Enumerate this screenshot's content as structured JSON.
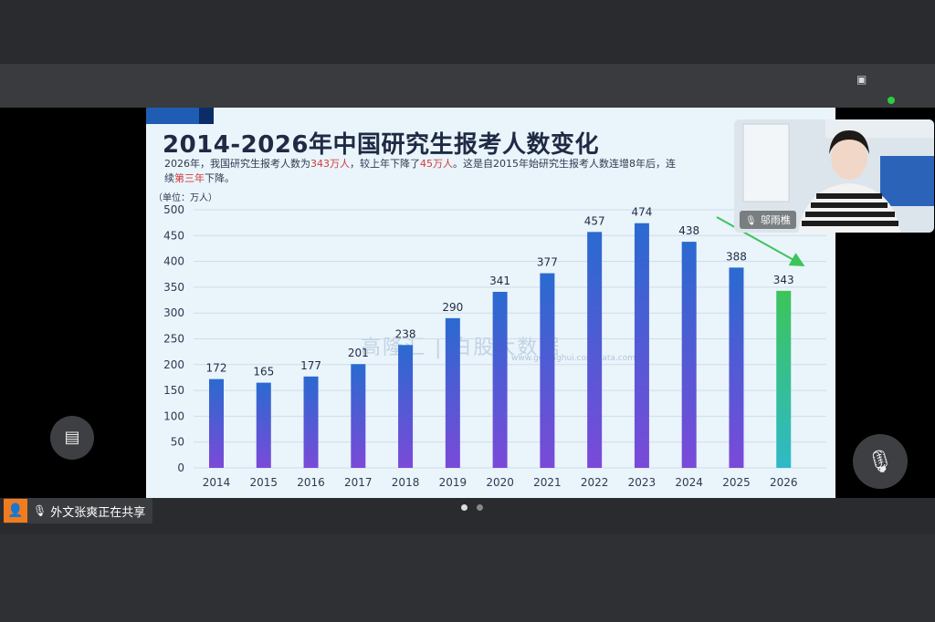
{
  "window": {
    "toolbar_items": [
      {
        "name": "toolbar-item-left-small",
        "label": "",
        "x": 40
      },
      {
        "name": "toolbar-item-left",
        "label": "",
        "x": 122
      },
      {
        "name": "toolbar-item-right-1",
        "label": "",
        "x": 800
      },
      {
        "name": "toolbar-item-right-2",
        "label": "",
        "x": 872
      },
      {
        "name": "toolbar-item-right-3",
        "label": "",
        "x": 968
      }
    ]
  },
  "slide": {
    "title": "2014-2026年中国研究生报考人数变化",
    "subtitle_parts": {
      "p1": "2026年，我国研究生报考人数为",
      "h1": "343万人",
      "p2": "，较上年下降了",
      "h2": "45万人",
      "p3": "。这是自2015年始研究生报考人数连增8年后，连续",
      "h3": "第三年",
      "p4": "下降。"
    },
    "unit": "（单位：万人）",
    "watermark": "高隆汇 | 白股大数据",
    "watermark_url": "www.gelonghui.com data.com",
    "colors": {
      "bar_top": "#2a6ad0",
      "bar_bottom": "#7a4ad8",
      "last_top": "#3cc45a",
      "last_bottom": "#2fb9c8",
      "arrow": "#3cc45a"
    }
  },
  "chart_data": {
    "type": "bar",
    "title": "2014-2026年中国研究生报考人数变化",
    "categories": [
      "2014",
      "2015",
      "2016",
      "2017",
      "2018",
      "2019",
      "2020",
      "2021",
      "2022",
      "2023",
      "2024",
      "2025",
      "2026"
    ],
    "values": [
      172,
      165,
      177,
      201,
      238,
      290,
      341,
      377,
      457,
      474,
      438,
      388,
      343
    ],
    "ylabel": "（单位：万人）",
    "ylim": [
      0,
      500
    ],
    "yticks": [
      0,
      50,
      100,
      150,
      200,
      250,
      300,
      350,
      400,
      450,
      500
    ],
    "grid": true
  },
  "camera": {
    "name": "邬雨樵"
  },
  "share": {
    "text": "外文张爽正在共享"
  }
}
